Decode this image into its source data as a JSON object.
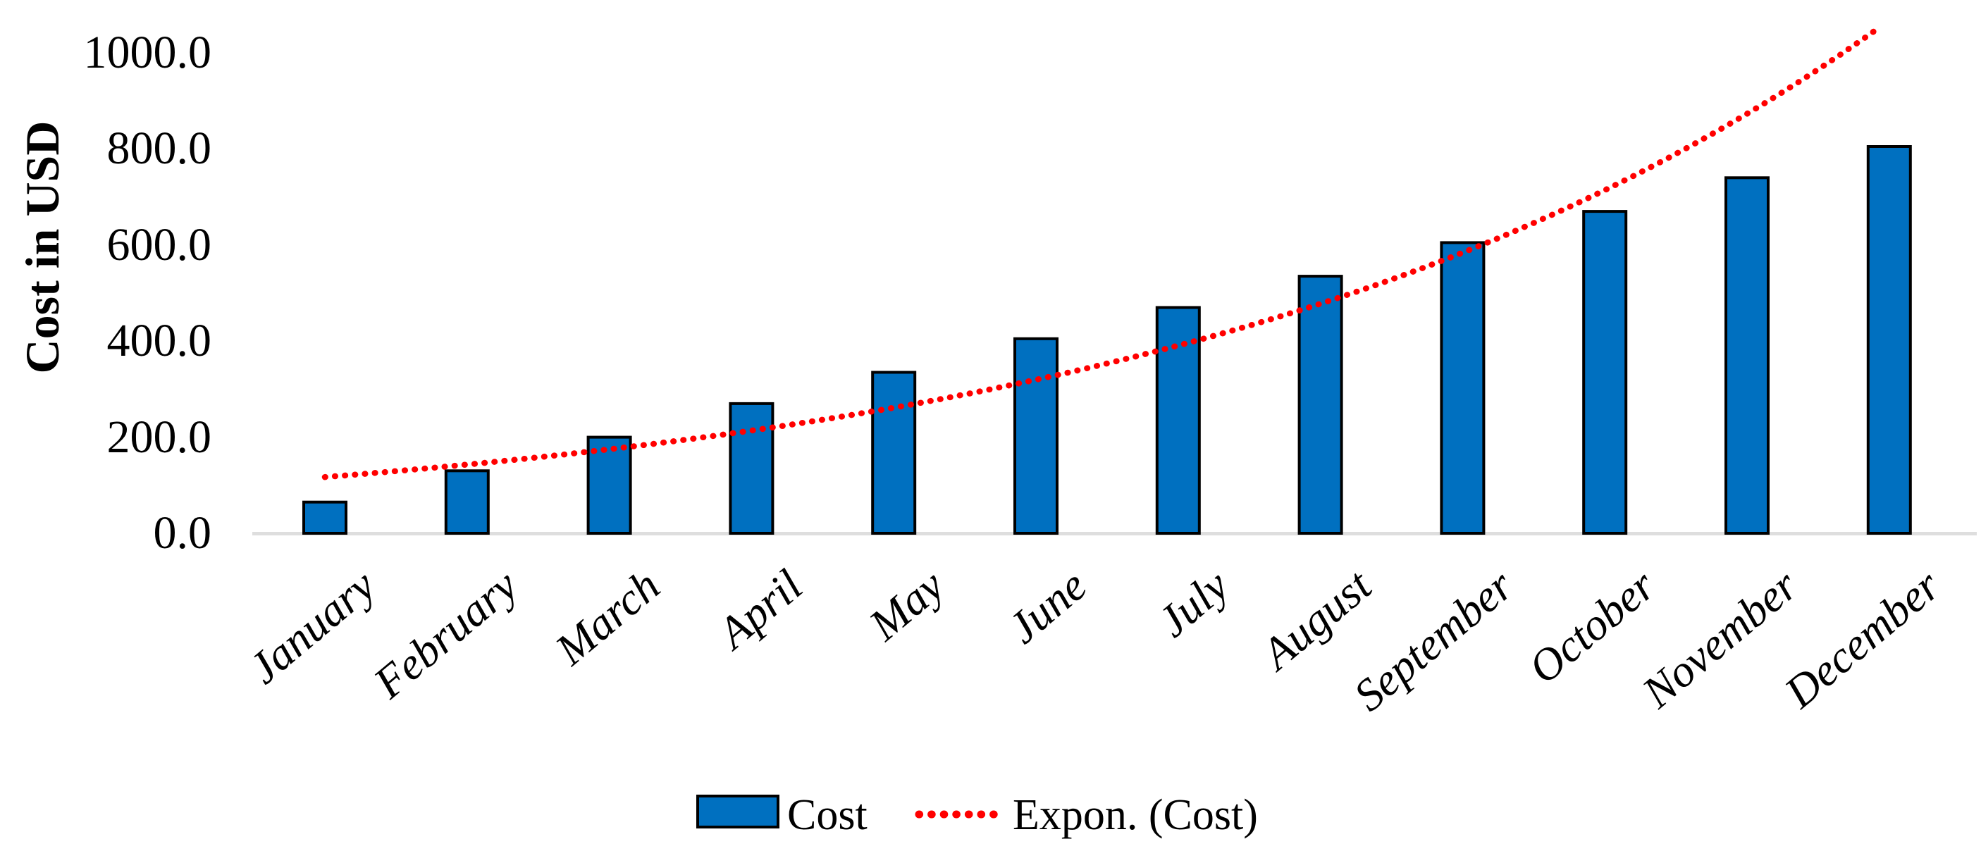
{
  "chart_data": {
    "type": "bar",
    "title": "",
    "ylabel": "Cost in USD",
    "categories": [
      "January",
      "February",
      "March",
      "April",
      "May",
      "June",
      "July",
      "August",
      "September",
      "October",
      "November",
      "December"
    ],
    "series": [
      {
        "name": "Cost",
        "values": [
          65,
          130,
          200,
          270,
          335,
          405,
          470,
          535,
          605,
          670,
          740,
          805
        ],
        "color": "#0070C0",
        "border_color": "#000000"
      }
    ],
    "trendline": {
      "name": "Expon. (Cost)",
      "kind": "exponential",
      "a": 117,
      "b": 0.201,
      "color": "#FF0000",
      "style": "dotted"
    },
    "ylim": [
      0,
      1000
    ],
    "ytick_step": 200,
    "ytick_labels": [
      "0.0",
      "200.0",
      "400.0",
      "600.0",
      "800.0",
      "1000.0"
    ],
    "grid": false,
    "legend": {
      "position": "bottom-center",
      "items": [
        "Cost",
        "Expon. (Cost)"
      ]
    },
    "axis_line_color": "#DEDEDE",
    "text_color": "#000000",
    "background": "#FFFFFF"
  }
}
